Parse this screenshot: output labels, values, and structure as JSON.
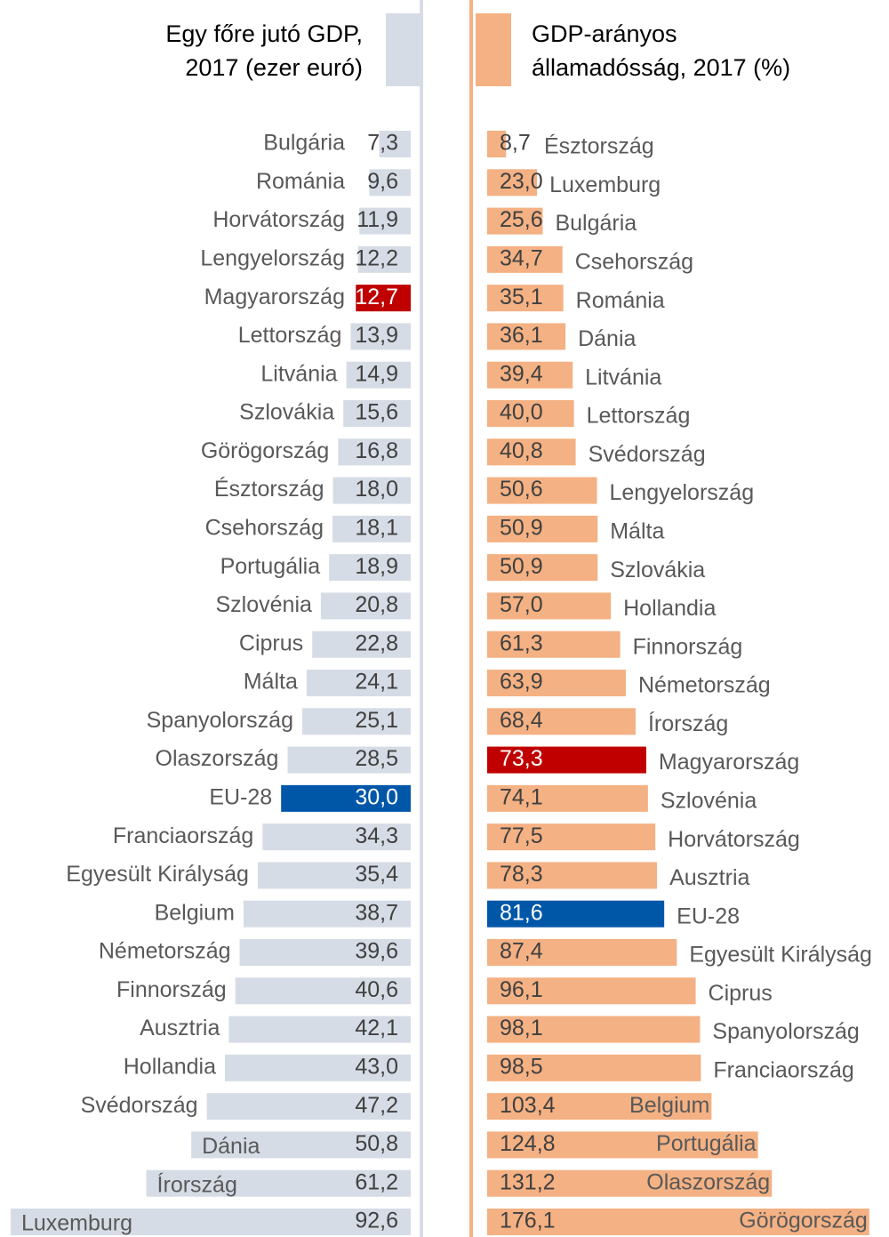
{
  "chart_data": [
    {
      "type": "hbar-left",
      "title": [
        "Egy főre jutó GDP,",
        "2017 (ezer euró)"
      ],
      "categories": [
        "Bulgária",
        "Románia",
        "Horvátország",
        "Lengyelország",
        "Magyarország",
        "Lettország",
        "Litvánia",
        "Szlovákia",
        "Görögország",
        "Észtország",
        "Csehország",
        "Portugália",
        "Szlovénia",
        "Ciprus",
        "Málta",
        "Spanyolország",
        "Olaszország",
        "EU-28",
        "Franciaország",
        "Egyesült Királyság",
        "Belgium",
        "Németország",
        "Finnország",
        "Ausztria",
        "Hollandia",
        "Svédország",
        "Dánia",
        "Írország",
        "Luxemburg"
      ],
      "values": [
        7.3,
        9.6,
        11.9,
        12.2,
        12.7,
        13.9,
        14.9,
        15.6,
        16.8,
        18.0,
        18.1,
        18.9,
        20.8,
        22.8,
        24.1,
        25.1,
        28.5,
        30.0,
        34.3,
        35.4,
        38.7,
        39.6,
        40.6,
        42.1,
        43.0,
        47.2,
        50.8,
        61.2,
        92.6
      ],
      "value_labels": [
        "7,3",
        "9,6",
        "11,9",
        "12,2",
        "12,7",
        "13,9",
        "14,9",
        "15,6",
        "16,8",
        "18,0",
        "18,1",
        "18,9",
        "20,8",
        "22,8",
        "24,1",
        "25,1",
        "28,5",
        "30,0",
        "34,3",
        "35,4",
        "38,7",
        "39,6",
        "40,6",
        "42,1",
        "43,0",
        "47,2",
        "50,8",
        "61,2",
        "92,6"
      ],
      "color": "#d6dce5",
      "colors": [
        "#d6dce5",
        "#d6dce5",
        "#d6dce5",
        "#d6dce5",
        "#c00000",
        "#d6dce5",
        "#d6dce5",
        "#d6dce5",
        "#d6dce5",
        "#d6dce5",
        "#d6dce5",
        "#d6dce5",
        "#d6dce5",
        "#d6dce5",
        "#d6dce5",
        "#d6dce5",
        "#d6dce5",
        "#0057a8",
        "#d6dce5",
        "#d6dce5",
        "#d6dce5",
        "#d6dce5",
        "#d6dce5",
        "#d6dce5",
        "#d6dce5",
        "#d6dce5",
        "#d6dce5",
        "#d6dce5",
        "#d6dce5"
      ],
      "xlim": [
        0,
        93
      ]
    },
    {
      "type": "hbar-right",
      "title": [
        "GDP-arányos",
        "államadósság, 2017 (%)"
      ],
      "categories": [
        "Észtország",
        "Luxemburg",
        "Bulgária",
        "Csehország",
        "Románia",
        "Dánia",
        "Litvánia",
        "Lettország",
        "Svédország",
        "Lengyelország",
        "Málta",
        "Szlovákia",
        "Hollandia",
        "Finnország",
        "Németország",
        "Írország",
        "Magyarország",
        "Szlovénia",
        "Horvátország",
        "Ausztria",
        "EU-28",
        "Egyesült Királyság",
        "Ciprus",
        "Spanyolország",
        "Franciaország",
        "Belgium",
        "Portugália",
        "Olaszország",
        "Görögország"
      ],
      "values": [
        8.7,
        23.0,
        25.6,
        34.7,
        35.1,
        36.1,
        39.4,
        40.0,
        40.8,
        50.6,
        50.9,
        50.9,
        57.0,
        61.3,
        63.9,
        68.4,
        73.3,
        74.1,
        77.5,
        78.3,
        81.6,
        87.4,
        96.1,
        98.1,
        98.5,
        103.4,
        124.8,
        131.2,
        176.1
      ],
      "value_labels": [
        "8,7",
        "23,0",
        "25,6",
        "34,7",
        "35,1",
        "36,1",
        "39,4",
        "40,0",
        "40,8",
        "50,6",
        "50,9",
        "50,9",
        "57,0",
        "61,3",
        "63,9",
        "68,4",
        "73,3",
        "74,1",
        "77,5",
        "78,3",
        "81,6",
        "87,4",
        "96,1",
        "98,1",
        "98,5",
        "103,4",
        "124,8",
        "131,2",
        "176,1"
      ],
      "color": "#f4b183",
      "colors": [
        "#f4b183",
        "#f4b183",
        "#f4b183",
        "#f4b183",
        "#f4b183",
        "#f4b183",
        "#f4b183",
        "#f4b183",
        "#f4b183",
        "#f4b183",
        "#f4b183",
        "#f4b183",
        "#f4b183",
        "#f4b183",
        "#f4b183",
        "#f4b183",
        "#c00000",
        "#f4b183",
        "#f4b183",
        "#f4b183",
        "#0057a8",
        "#f4b183",
        "#f4b183",
        "#f4b183",
        "#f4b183",
        "#f4b183",
        "#f4b183",
        "#f4b183",
        "#f4b183"
      ],
      "xlim": [
        0,
        177
      ]
    }
  ]
}
